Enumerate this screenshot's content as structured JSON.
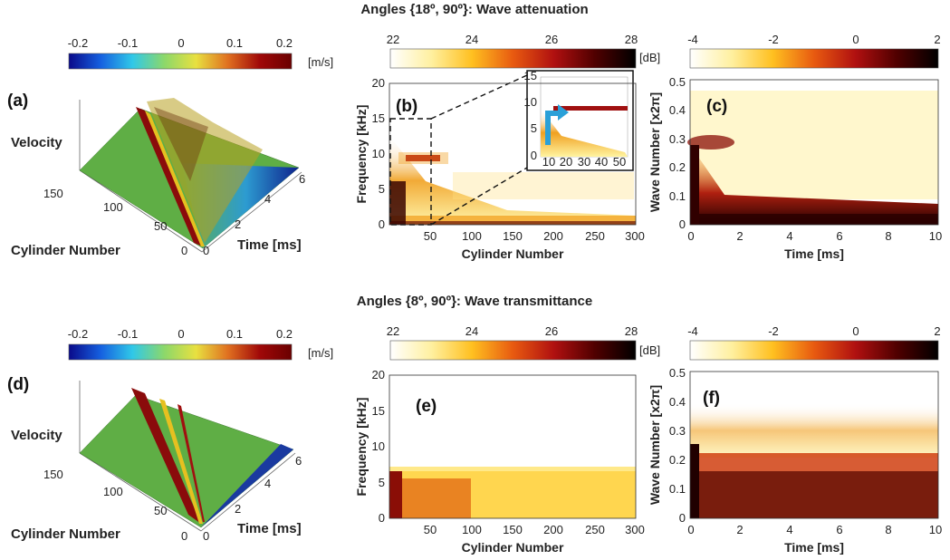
{
  "title_top": "Angles {18º, 90º}: Wave attenuation",
  "title_bottom": "Angles {8º, 90º}: Wave transmittance",
  "colorbars": {
    "velocity": {
      "ticks": [
        "-0.2",
        "-0.1",
        "0",
        "0.1",
        "0.2"
      ],
      "unit": "[m/s]",
      "colors": [
        "#0a0a8a",
        "#1560e0",
        "#30c8e8",
        "#8cd86a",
        "#e8e040",
        "#e07020",
        "#a00808",
        "#6a0000"
      ]
    },
    "db": {
      "ticks": [
        "22",
        "24",
        "26",
        "28"
      ],
      "unit": "[dB]",
      "colors": [
        "#ffffff",
        "#fff0a0",
        "#ffc020",
        "#e85a10",
        "#b01010",
        "#500000",
        "#000000"
      ]
    },
    "log": {
      "ticks": [
        "-4",
        "-2",
        "0",
        "2"
      ],
      "colors": [
        "#ffffff",
        "#fff0a0",
        "#ffc020",
        "#e85a10",
        "#b01010",
        "#500000",
        "#000000"
      ]
    }
  },
  "chart_data": [
    {
      "id": "a",
      "panel_label": "(a)",
      "type": "surface",
      "z_label": "Velocity",
      "y_label": "Cylinder Number",
      "x_label": "Time [ms]",
      "y_ticks": [
        "150",
        "100",
        "50",
        "0"
      ],
      "x_ticks": [
        "0",
        "2",
        "4",
        "6"
      ],
      "zlim": [
        -0.2,
        0.2
      ],
      "xlim": [
        0,
        6
      ],
      "ylim": [
        0,
        150
      ]
    },
    {
      "id": "b",
      "panel_label": "(b)",
      "type": "heatmap",
      "x_label": "Cylinder Number",
      "y_label": "Frequency [kHz]",
      "x_ticks": [
        "50",
        "100",
        "150",
        "200",
        "250",
        "300"
      ],
      "y_ticks": [
        "0",
        "5",
        "10",
        "15",
        "20"
      ],
      "xlim": [
        0,
        300
      ],
      "ylim": [
        0,
        20
      ],
      "clim_dB": [
        22,
        28
      ],
      "inset": {
        "x_ticks": [
          "10",
          "20",
          "30",
          "40",
          "50"
        ],
        "y_ticks": [
          "0",
          "5",
          "10",
          "15"
        ],
        "xlim": [
          0,
          50
        ],
        "ylim": [
          0,
          15
        ]
      }
    },
    {
      "id": "c",
      "panel_label": "(c)",
      "type": "heatmap",
      "x_label": "Time [ms]",
      "y_label": "Wave Number [x2π]",
      "x_ticks": [
        "0",
        "2",
        "4",
        "6",
        "8",
        "10"
      ],
      "y_ticks": [
        "0",
        "0.1",
        "0.2",
        "0.3",
        "0.4",
        "0.5"
      ],
      "xlim": [
        0,
        10
      ],
      "ylim": [
        0,
        0.5
      ],
      "clim": [
        -4,
        2
      ]
    },
    {
      "id": "d",
      "panel_label": "(d)",
      "type": "surface",
      "z_label": "Velocity",
      "y_label": "Cylinder Number",
      "x_label": "Time [ms]",
      "y_ticks": [
        "150",
        "100",
        "50",
        "0"
      ],
      "x_ticks": [
        "0",
        "2",
        "4",
        "6"
      ],
      "zlim": [
        -0.2,
        0.2
      ],
      "xlim": [
        0,
        6
      ],
      "ylim": [
        0,
        150
      ]
    },
    {
      "id": "e",
      "panel_label": "(e)",
      "type": "heatmap",
      "x_label": "Cylinder Number",
      "y_label": "Frequency [kHz]",
      "x_ticks": [
        "50",
        "100",
        "150",
        "200",
        "250",
        "300"
      ],
      "y_ticks": [
        "0",
        "5",
        "10",
        "15",
        "20"
      ],
      "xlim": [
        0,
        300
      ],
      "ylim": [
        0,
        20
      ],
      "clim_dB": [
        22,
        28
      ]
    },
    {
      "id": "f",
      "panel_label": "(f)",
      "type": "heatmap",
      "x_label": "Time [ms]",
      "y_label": "Wave Number [x2π]",
      "x_ticks": [
        "0",
        "2",
        "4",
        "6",
        "8",
        "10"
      ],
      "y_ticks": [
        "0",
        "0.1",
        "0.2",
        "0.3",
        "0.4",
        "0.5"
      ],
      "xlim": [
        0,
        10
      ],
      "ylim": [
        0,
        0.5
      ],
      "clim": [
        -4,
        2
      ]
    }
  ]
}
